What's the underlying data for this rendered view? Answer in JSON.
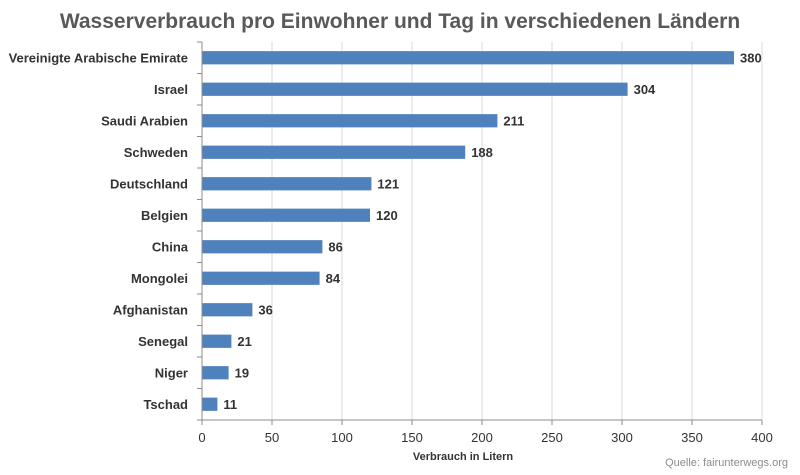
{
  "chart_data": {
    "type": "bar",
    "orientation": "horizontal",
    "title": "Wasserverbrauch pro Einwohner und Tag in verschiedenen Ländern",
    "xlabel": "Verbrauch in Litern",
    "ylabel": "",
    "categories": [
      "Vereinigte Arabische Emirate",
      "Israel",
      "Saudi Arabien",
      "Schweden",
      "Deutschland",
      "Belgien",
      "China",
      "Mongolei",
      "Afghanistan",
      "Senegal",
      "Niger",
      "Tschad"
    ],
    "values": [
      380,
      304,
      211,
      188,
      121,
      120,
      86,
      84,
      36,
      21,
      19,
      11
    ],
    "xlim": [
      0,
      400
    ],
    "xticks": [
      0,
      50,
      100,
      150,
      200,
      250,
      300,
      350,
      400
    ],
    "grid": "vertical",
    "legend": "none",
    "bar_color": "#4f81bd",
    "grid_color": "#d9d9d9",
    "axis_color": "#8c8c8c",
    "source": "Quelle: fairunterwegs.org"
  }
}
